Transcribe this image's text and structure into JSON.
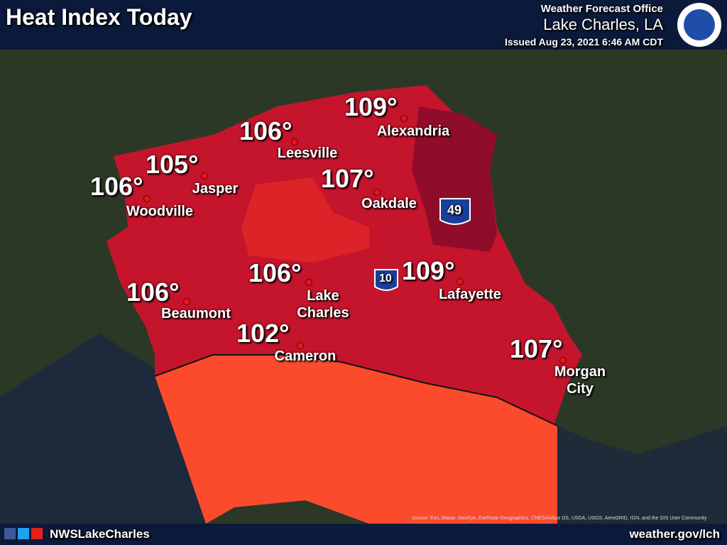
{
  "header": {
    "title": "Heat Index Today",
    "office": "Weather Forecast Office",
    "location": "Lake Charles, LA",
    "issued": "Issued Aug 23, 2021 6:46 AM CDT"
  },
  "cities": [
    {
      "temp": "109°",
      "name": "Alexandria"
    },
    {
      "temp": "106°",
      "name": "Leesville"
    },
    {
      "temp": "105°",
      "name": "Jasper"
    },
    {
      "temp": "106°",
      "name": "Woodville"
    },
    {
      "temp": "107°",
      "name": "Oakdale"
    },
    {
      "temp": "106°",
      "name": "Lake Charles"
    },
    {
      "temp": "109°",
      "name": "Lafayette"
    },
    {
      "temp": "106°",
      "name": "Beaumont"
    },
    {
      "temp": "102°",
      "name": "Cameron"
    },
    {
      "temp": "107°",
      "name": "Morgan City"
    }
  ],
  "shields": [
    "49",
    "10"
  ],
  "source": "Source: Esri, Maxar, GeoEye, Earthstar Geographics, CNES/Airbus DS, USDA, USGS, AeroGRID, IGN, and the GIS User Community",
  "footer": {
    "handle": "NWSLakeCharles",
    "website": "weather.gov/lch"
  }
}
